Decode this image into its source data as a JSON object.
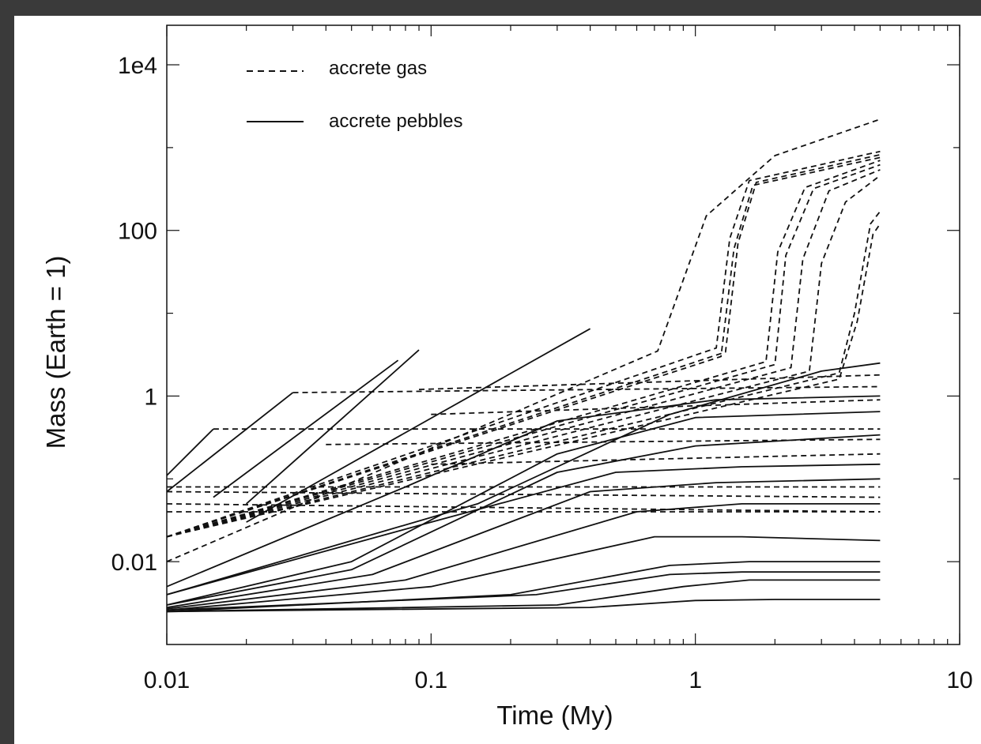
{
  "chart_data": {
    "type": "line",
    "xlabel": "Time (My)",
    "ylabel": "Mass (Earth = 1)",
    "x_scale": "log",
    "y_scale": "log",
    "xlim": [
      0.01,
      10
    ],
    "ylim": [
      0.001,
      30000
    ],
    "x_ticks": [
      {
        "value": 0.01,
        "label": "0.01"
      },
      {
        "value": 0.1,
        "label": "0.1"
      },
      {
        "value": 1,
        "label": "1"
      },
      {
        "value": 10,
        "label": "10"
      }
    ],
    "y_ticks": [
      {
        "value": 0.01,
        "label": "0.01"
      },
      {
        "value": 1,
        "label": "1"
      },
      {
        "value": 100,
        "label": "100"
      },
      {
        "value": 10000,
        "label": "1e4"
      }
    ],
    "y_minor_ticks": [
      0.1,
      10,
      1000
    ],
    "grid": false,
    "legend_position": "top-left",
    "legend": [
      {
        "label": "accrete gas",
        "style": "dashed"
      },
      {
        "label": "accrete pebbles",
        "style": "solid"
      }
    ],
    "series": [
      {
        "style": "dashed",
        "x": [
          0.01,
          0.72,
          1.1,
          2.0,
          5.0
        ],
        "y": [
          0.01,
          3.5,
          150,
          800,
          2200
        ]
      },
      {
        "style": "dashed",
        "x": [
          0.01,
          1.2,
          1.35,
          1.6,
          5.0
        ],
        "y": [
          0.02,
          3.8,
          80,
          400,
          900
        ]
      },
      {
        "style": "dashed",
        "x": [
          0.01,
          1.3,
          1.45,
          1.7,
          5.0
        ],
        "y": [
          0.02,
          3.4,
          70,
          380,
          820
        ]
      },
      {
        "style": "dashed",
        "x": [
          0.01,
          1.25,
          1.4,
          1.65,
          5.0
        ],
        "y": [
          0.02,
          3.0,
          60,
          350,
          760
        ]
      },
      {
        "style": "dashed",
        "x": [
          0.01,
          1.85,
          2.05,
          2.6,
          5.0
        ],
        "y": [
          0.02,
          2.6,
          55,
          330,
          700
        ]
      },
      {
        "style": "dashed",
        "x": [
          0.01,
          2.0,
          2.2,
          2.8,
          5.0
        ],
        "y": [
          0.02,
          2.4,
          50,
          320,
          620
        ]
      },
      {
        "style": "dashed",
        "x": [
          0.01,
          2.3,
          2.55,
          3.2,
          5.0
        ],
        "y": [
          0.02,
          2.2,
          45,
          300,
          540
        ]
      },
      {
        "style": "dashed",
        "x": [
          0.01,
          2.7,
          3.0,
          3.7,
          5.0
        ],
        "y": [
          0.02,
          2.0,
          40,
          220,
          460
        ]
      },
      {
        "style": "dashed",
        "x": [
          0.01,
          3.5,
          4.0,
          4.6,
          5.0
        ],
        "y": [
          0.02,
          1.9,
          10,
          120,
          170
        ]
      },
      {
        "style": "dashed",
        "x": [
          0.01,
          3.5,
          4.1,
          4.7,
          5.0
        ],
        "y": [
          0.02,
          1.6,
          8,
          90,
          120
        ]
      },
      {
        "style": "dashed",
        "x": [
          0.015,
          5.0
        ],
        "y": [
          0.4,
          0.4
        ]
      },
      {
        "style": "dashed",
        "x": [
          0.03,
          5.0
        ],
        "y": [
          1.1,
          1.3
        ]
      },
      {
        "style": "dashed",
        "x": [
          0.09,
          5.0
        ],
        "y": [
          1.2,
          1.8
        ]
      },
      {
        "style": "dashed",
        "x": [
          0.01,
          5.0
        ],
        "y": [
          0.07,
          0.06
        ]
      },
      {
        "style": "dashed",
        "x": [
          0.01,
          5.0
        ],
        "y": [
          0.08,
          0.08
        ]
      },
      {
        "style": "dashed",
        "x": [
          0.01,
          5.0
        ],
        "y": [
          0.05,
          0.04
        ]
      },
      {
        "style": "dashed",
        "x": [
          0.01,
          5.0
        ],
        "y": [
          0.04,
          0.04
        ]
      },
      {
        "style": "dashed",
        "x": [
          0.04,
          5.0
        ],
        "y": [
          0.26,
          0.3
        ]
      },
      {
        "style": "dashed",
        "x": [
          0.1,
          5.0
        ],
        "y": [
          0.15,
          0.2
        ]
      },
      {
        "style": "dashed",
        "x": [
          0.1,
          5.0
        ],
        "y": [
          0.6,
          0.9
        ]
      },
      {
        "style": "solid",
        "x": [
          0.01,
          0.015
        ],
        "y": [
          0.11,
          0.4
        ]
      },
      {
        "style": "solid",
        "x": [
          0.01,
          0.03
        ],
        "y": [
          0.07,
          1.1
        ]
      },
      {
        "style": "solid",
        "x": [
          0.015,
          0.075
        ],
        "y": [
          0.06,
          2.7
        ]
      },
      {
        "style": "solid",
        "x": [
          0.02,
          0.09
        ],
        "y": [
          0.05,
          3.6
        ]
      },
      {
        "style": "solid",
        "x": [
          0.02,
          0.4
        ],
        "y": [
          0.03,
          6.5
        ]
      },
      {
        "style": "solid",
        "x": [
          0.01,
          0.05,
          0.3,
          1.0,
          5.0
        ],
        "y": [
          0.003,
          0.01,
          0.2,
          0.55,
          0.65
        ]
      },
      {
        "style": "solid",
        "x": [
          0.01,
          0.05,
          0.3,
          1.0,
          5.0
        ],
        "y": [
          0.003,
          0.008,
          0.12,
          0.25,
          0.34
        ]
      },
      {
        "style": "solid",
        "x": [
          0.01,
          0.06,
          0.4,
          1.2,
          5.0
        ],
        "y": [
          0.0028,
          0.007,
          0.07,
          0.09,
          0.1
        ]
      },
      {
        "style": "solid",
        "x": [
          0.01,
          0.08,
          0.6,
          1.5,
          5.0
        ],
        "y": [
          0.0027,
          0.006,
          0.04,
          0.05,
          0.05
        ]
      },
      {
        "style": "solid",
        "x": [
          0.01,
          0.1,
          0.7,
          1.5,
          5.0
        ],
        "y": [
          0.0026,
          0.005,
          0.02,
          0.02,
          0.018
        ]
      },
      {
        "style": "solid",
        "x": [
          0.01,
          0.2,
          0.8,
          1.6,
          5.0
        ],
        "y": [
          0.0025,
          0.004,
          0.009,
          0.01,
          0.01
        ]
      },
      {
        "style": "solid",
        "x": [
          0.01,
          0.3,
          0.9,
          1.6,
          5.0
        ],
        "y": [
          0.0025,
          0.003,
          0.005,
          0.006,
          0.006
        ]
      },
      {
        "style": "solid",
        "x": [
          0.01,
          0.25,
          0.8,
          1.5,
          5.0
        ],
        "y": [
          0.0026,
          0.004,
          0.007,
          0.0075,
          0.0075
        ]
      },
      {
        "style": "solid",
        "x": [
          0.01,
          0.4,
          1.0,
          2.0,
          5.0
        ],
        "y": [
          0.0025,
          0.0028,
          0.0034,
          0.0035,
          0.0035
        ]
      },
      {
        "style": "solid",
        "x": [
          0.01,
          0.15,
          0.8,
          3.0,
          5.0
        ],
        "y": [
          0.004,
          0.05,
          0.6,
          2.0,
          2.5
        ]
      },
      {
        "style": "solid",
        "x": [
          0.01,
          0.08,
          0.3,
          1.2,
          5.0
        ],
        "y": [
          0.005,
          0.08,
          0.5,
          0.9,
          1.0
        ]
      },
      {
        "style": "solid",
        "x": [
          0.01,
          0.1,
          0.5,
          1.5,
          5.0
        ],
        "y": [
          0.004,
          0.03,
          0.12,
          0.14,
          0.15
        ]
      }
    ]
  }
}
